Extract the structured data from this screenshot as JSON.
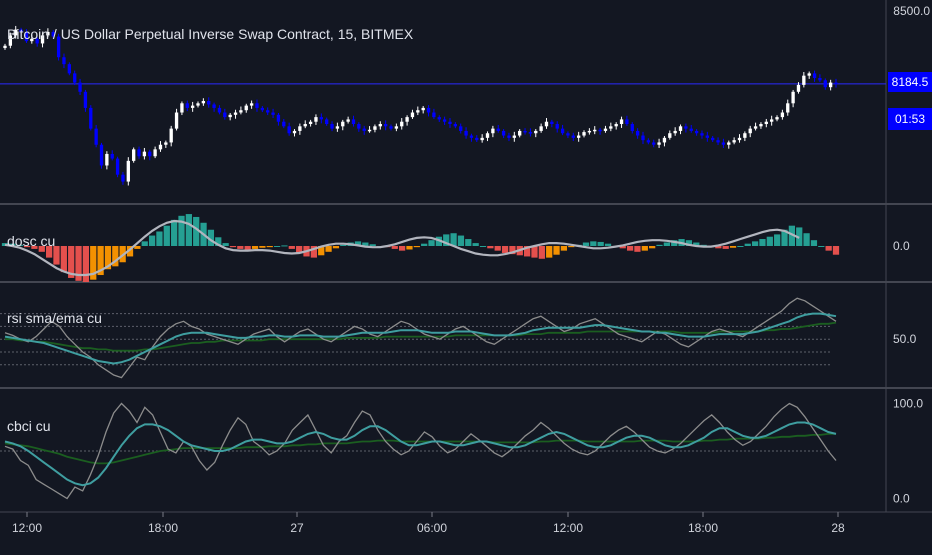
{
  "title": "Bitcoin / US Dollar Perpetual Inverse Swap Contract, 15, BITMEX",
  "price_tag": {
    "value": "8184.5",
    "timer": "01:53"
  },
  "colors": {
    "background": "#131722",
    "candle_up": "#ffffff",
    "candle_down": "#0000ff",
    "hist_up": "#26a69a",
    "hist_down": "#ef5350",
    "hist_down_light": "#ff9800",
    "osc_line": "#b2b5be",
    "fast_line": "#3f9ea0",
    "slow_line": "#1b5e20",
    "raw_line": "#8c8c8c"
  },
  "chart_data": [
    {
      "type": "candlestick",
      "title": "Bitcoin / US Dollar Perpetual Inverse Swap Contract, 15, BITMEX",
      "x_tick_labels": [
        "12:00",
        "18:00",
        "27",
        "06:00",
        "12:00",
        "18:00",
        "28"
      ],
      "y_tick_labels": [
        "8500.0"
      ],
      "ylim": [
        7680,
        8540
      ],
      "last_price": 8184.5,
      "close": [
        8350,
        8395,
        8420,
        8410,
        8370,
        8380,
        8360,
        8395,
        8410,
        8390,
        8300,
        8270,
        8230,
        8190,
        8150,
        8080,
        7990,
        7920,
        7830,
        7880,
        7860,
        7790,
        7760,
        7850,
        7900,
        7870,
        7890,
        7870,
        7900,
        7920,
        7930,
        7990,
        8060,
        8100,
        8080,
        8090,
        8100,
        8110,
        8095,
        8080,
        8060,
        8040,
        8050,
        8060,
        8070,
        8090,
        8100,
        8080,
        8070,
        8060,
        8050,
        8020,
        8000,
        7970,
        7980,
        8000,
        8010,
        8020,
        8040,
        8030,
        8010,
        7990,
        8000,
        8020,
        8030,
        8010,
        7990,
        7980,
        7985,
        8000,
        8010,
        8000,
        7990,
        8000,
        8020,
        8040,
        8060,
        8070,
        8080,
        8060,
        8040,
        8030,
        8020,
        8010,
        8000,
        7980,
        7960,
        7950,
        7940,
        7950,
        7970,
        7990,
        7980,
        7960,
        7950,
        7960,
        7980,
        7975,
        7970,
        7980,
        8000,
        8020,
        8010,
        7990,
        7970,
        7960,
        7950,
        7960,
        7975,
        7980,
        7985,
        7980,
        7990,
        8000,
        8010,
        8030,
        8010,
        7980,
        7960,
        7940,
        7930,
        7920,
        7930,
        7950,
        7970,
        7980,
        8000,
        7990,
        7980,
        7970,
        7960,
        7950,
        7940,
        7930,
        7920,
        7930,
        7940,
        7950,
        7970,
        7990,
        8000,
        8010,
        8020,
        8030,
        8040,
        8060,
        8100,
        8150,
        8180,
        8220,
        8230,
        8210,
        8200,
        8170,
        8190,
        8185
      ]
    },
    {
      "type": "histogram+line",
      "name": "dosc cu",
      "y_tick_labels": [
        "0.0"
      ],
      "values": [
        0.05,
        0.04,
        0.02,
        -0.02,
        -0.05,
        -0.1,
        -0.2,
        -0.32,
        -0.45,
        -0.55,
        -0.6,
        -0.62,
        -0.58,
        -0.5,
        -0.4,
        -0.35,
        -0.28,
        -0.18,
        -0.05,
        0.08,
        0.18,
        0.25,
        0.35,
        0.45,
        0.52,
        0.55,
        0.5,
        0.4,
        0.28,
        0.15,
        0.05,
        -0.02,
        -0.05,
        -0.06,
        -0.05,
        -0.03,
        -0.02,
        0.0,
        0.01,
        -0.05,
        -0.12,
        -0.18,
        -0.2,
        -0.16,
        -0.1,
        -0.04,
        0.02,
        0.06,
        0.08,
        0.06,
        0.03,
        0.0,
        -0.02,
        -0.05,
        -0.08,
        -0.06,
        -0.02,
        0.04,
        0.1,
        0.16,
        0.2,
        0.22,
        0.18,
        0.12,
        0.05,
        0.0,
        -0.04,
        -0.08,
        -0.12,
        -0.14,
        -0.16,
        -0.18,
        -0.2,
        -0.22,
        -0.2,
        -0.15,
        -0.08,
        -0.02,
        0.02,
        0.06,
        0.08,
        0.07,
        0.04,
        0.0,
        -0.04,
        -0.08,
        -0.1,
        -0.08,
        -0.04,
        0.02,
        0.06,
        0.1,
        0.12,
        0.1,
        0.06,
        0.02,
        -0.02,
        -0.04,
        -0.05,
        -0.03,
        0.0,
        0.04,
        0.08,
        0.12,
        0.16,
        0.2,
        0.28,
        0.35,
        0.32,
        0.22,
        0.1,
        0.0,
        -0.08,
        -0.15
      ],
      "signal": [
        0.02,
        0.0,
        -0.03,
        -0.08,
        -0.14,
        -0.22,
        -0.3,
        -0.38,
        -0.44,
        -0.48,
        -0.5,
        -0.5,
        -0.48,
        -0.42,
        -0.35,
        -0.26,
        -0.16,
        -0.06,
        0.05,
        0.16,
        0.26,
        0.34,
        0.4,
        0.43,
        0.42,
        0.38,
        0.3,
        0.2,
        0.1,
        0.02,
        -0.04,
        -0.07,
        -0.08,
        -0.08,
        -0.07,
        -0.07,
        -0.08,
        -0.1,
        -0.12,
        -0.13,
        -0.12,
        -0.09,
        -0.05,
        -0.01,
        0.02,
        0.04,
        0.04,
        0.03,
        0.01,
        -0.01,
        -0.02,
        -0.02,
        0.0,
        0.03,
        0.07,
        0.11,
        0.14,
        0.15,
        0.14,
        0.1,
        0.05,
        0.0,
        -0.05,
        -0.09,
        -0.13,
        -0.15,
        -0.16,
        -0.16,
        -0.14,
        -0.11,
        -0.07,
        -0.03,
        0.0,
        0.03,
        0.05,
        0.05,
        0.04,
        0.02,
        0.0,
        -0.02,
        -0.04,
        -0.04,
        -0.03,
        -0.01,
        0.01,
        0.04,
        0.07,
        0.09,
        0.1,
        0.1,
        0.09,
        0.07,
        0.05,
        0.02,
        0.0,
        -0.01,
        -0.01,
        0.01,
        0.04,
        0.08,
        0.12,
        0.16,
        0.2,
        0.24,
        0.27,
        0.28,
        0.26,
        0.2,
        0.14
      ]
    },
    {
      "type": "line",
      "name": "rsi sma/ema cu",
      "y_tick_labels": [
        "50.0"
      ],
      "ylim": [
        0,
        100
      ],
      "levels": [
        70,
        60,
        50,
        40,
        30
      ],
      "rsi": [
        55,
        53,
        50,
        48,
        52,
        58,
        64,
        60,
        52,
        46,
        40,
        36,
        30,
        26,
        22,
        20,
        28,
        36,
        34,
        44,
        52,
        58,
        62,
        64,
        60,
        58,
        54,
        52,
        50,
        48,
        46,
        50,
        54,
        56,
        58,
        52,
        48,
        52,
        56,
        58,
        54,
        50,
        48,
        52,
        56,
        60,
        58,
        54,
        52,
        56,
        60,
        64,
        62,
        58,
        54,
        52,
        50,
        54,
        58,
        60,
        56,
        52,
        48,
        46,
        50,
        54,
        58,
        62,
        66,
        68,
        64,
        60,
        56,
        58,
        62,
        64,
        66,
        62,
        58,
        54,
        52,
        50,
        48,
        52,
        56,
        54,
        50,
        46,
        44,
        48,
        52,
        56,
        58,
        56,
        54,
        52,
        56,
        60,
        64,
        68,
        72,
        78,
        82,
        80,
        76,
        72,
        68,
        64
      ],
      "fast": [
        52,
        51,
        50,
        49,
        48,
        47,
        45,
        43,
        41,
        39,
        37,
        35,
        33,
        32,
        31,
        32,
        34,
        37,
        40,
        43,
        46,
        49,
        52,
        54,
        55,
        55,
        55,
        54,
        53,
        52,
        51,
        51,
        52,
        52,
        53,
        53,
        52,
        52,
        53,
        53,
        53,
        52,
        52,
        52,
        53,
        54,
        55,
        55,
        55,
        55,
        56,
        57,
        57,
        57,
        56,
        55,
        55,
        55,
        56,
        56,
        56,
        55,
        54,
        53,
        53,
        53,
        54,
        55,
        57,
        58,
        59,
        59,
        59,
        59,
        59,
        60,
        61,
        61,
        60,
        59,
        58,
        57,
        56,
        56,
        55,
        55,
        54,
        53,
        52,
        52,
        52,
        53,
        54,
        54,
        54,
        54,
        55,
        56,
        58,
        60,
        62,
        64,
        67,
        69,
        70,
        70,
        69,
        68
      ],
      "slow": [
        50,
        50,
        49,
        49,
        48,
        48,
        47,
        46,
        45,
        44,
        43,
        43,
        42,
        42,
        41,
        41,
        41,
        41,
        42,
        42,
        43,
        44,
        45,
        46,
        47,
        47,
        48,
        48,
        49,
        49,
        49,
        49,
        49,
        49,
        50,
        50,
        50,
        50,
        50,
        50,
        50,
        50,
        50,
        50,
        51,
        51,
        51,
        51,
        51,
        52,
        52,
        52,
        52,
        52,
        52,
        52,
        52,
        52,
        53,
        53,
        53,
        53,
        53,
        53,
        53,
        53,
        53,
        54,
        54,
        54,
        55,
        55,
        55,
        55,
        55,
        56,
        56,
        56,
        56,
        56,
        56,
        56,
        56,
        56,
        56,
        56,
        56,
        55,
        55,
        55,
        55,
        55,
        56,
        56,
        56,
        56,
        56,
        56,
        57,
        57,
        58,
        58,
        59,
        60,
        61,
        62,
        62,
        63
      ]
    },
    {
      "type": "line",
      "name": "cbci cu",
      "y_tick_labels": [
        "100.0",
        "0.0"
      ],
      "ylim": [
        -10,
        110
      ],
      "levels": [
        50
      ],
      "raw": [
        55,
        52,
        40,
        35,
        20,
        15,
        10,
        5,
        0,
        12,
        8,
        25,
        45,
        70,
        90,
        100,
        92,
        80,
        96,
        88,
        70,
        52,
        48,
        60,
        55,
        40,
        30,
        38,
        56,
        72,
        85,
        78,
        60,
        54,
        46,
        50,
        58,
        72,
        80,
        88,
        72,
        56,
        48,
        60,
        66,
        80,
        92,
        88,
        72,
        60,
        52,
        46,
        50,
        60,
        70,
        65,
        55,
        48,
        52,
        60,
        68,
        62,
        55,
        48,
        44,
        50,
        58,
        66,
        72,
        80,
        74,
        66,
        58,
        52,
        48,
        46,
        50,
        58,
        66,
        72,
        76,
        70,
        62,
        54,
        50,
        48,
        52,
        58,
        66,
        74,
        82,
        88,
        80,
        70,
        62,
        56,
        60,
        68,
        76,
        86,
        94,
        100,
        96,
        86,
        74,
        62,
        50,
        40
      ],
      "fast": [
        60,
        58,
        55,
        50,
        44,
        38,
        32,
        26,
        20,
        16,
        14,
        16,
        22,
        32,
        44,
        56,
        66,
        74,
        78,
        78,
        76,
        72,
        66,
        60,
        56,
        54,
        52,
        50,
        50,
        52,
        56,
        60,
        62,
        62,
        60,
        58,
        58,
        60,
        64,
        68,
        70,
        68,
        64,
        62,
        62,
        66,
        72,
        76,
        76,
        72,
        66,
        60,
        56,
        56,
        58,
        60,
        60,
        58,
        56,
        56,
        58,
        60,
        60,
        58,
        56,
        54,
        54,
        56,
        60,
        64,
        68,
        70,
        68,
        64,
        60,
        56,
        54,
        54,
        56,
        60,
        64,
        66,
        66,
        64,
        60,
        56,
        54,
        54,
        56,
        60,
        64,
        70,
        74,
        74,
        70,
        66,
        64,
        64,
        66,
        70,
        74,
        78,
        80,
        80,
        78,
        74,
        70,
        68
      ],
      "slow": [
        58,
        57,
        56,
        55,
        53,
        51,
        49,
        47,
        44,
        42,
        40,
        38,
        37,
        37,
        38,
        40,
        42,
        44,
        46,
        48,
        50,
        51,
        52,
        53,
        53,
        53,
        53,
        53,
        53,
        53,
        53,
        54,
        54,
        54,
        55,
        55,
        55,
        56,
        56,
        57,
        57,
        58,
        58,
        58,
        58,
        59,
        60,
        60,
        61,
        61,
        61,
        60,
        60,
        60,
        60,
        60,
        60,
        60,
        60,
        60,
        60,
        60,
        60,
        59,
        59,
        59,
        59,
        59,
        59,
        60,
        60,
        61,
        61,
        61,
        61,
        60,
        60,
        60,
        60,
        60,
        60,
        60,
        61,
        61,
        61,
        61,
        60,
        60,
        60,
        60,
        61,
        61,
        62,
        62,
        63,
        63,
        63,
        63,
        64,
        64,
        65,
        65,
        66,
        66,
        67,
        67,
        68,
        68
      ]
    }
  ]
}
